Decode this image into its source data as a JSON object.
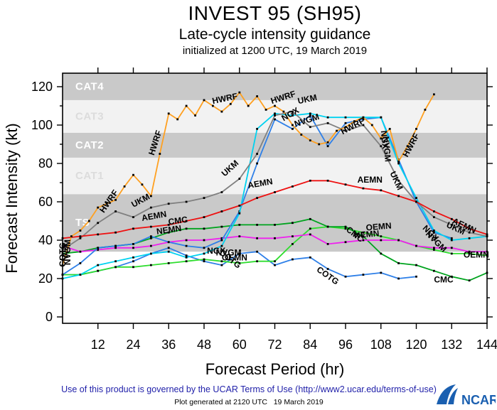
{
  "header": {
    "title": "INVEST 95 (SH95)",
    "subtitle": "Late-cycle intensity guidance",
    "initialized": "initialized at 1200 UTC, 19 March 2019"
  },
  "footer": {
    "terms": "Use of this product is governed by the UCAR Terms of Use (http://www2.ucar.edu/terms-of-use)",
    "generated": "Plot generated at 2120 UTC   19 March 2019",
    "logo_text": "NCAR"
  },
  "chart_data": {
    "type": "line",
    "title": "INVEST 95 (SH95)",
    "xlabel": "Forecast Period (hr)",
    "ylabel": "Forecast Intensity (kt)",
    "xlim": [
      0,
      144
    ],
    "ylim": [
      -3,
      127
    ],
    "x_ticks": [
      12,
      24,
      36,
      48,
      60,
      72,
      84,
      96,
      108,
      120,
      132,
      144
    ],
    "y_ticks": [
      0,
      20,
      40,
      60,
      80,
      100,
      120
    ],
    "y_minor_ticks": [
      10,
      30,
      50,
      70,
      90,
      110
    ],
    "grid": false,
    "bands": [
      {
        "label": "TS",
        "from": 34,
        "to": 64,
        "fill": "#c9c9c9",
        "label_color": "#ffffff"
      },
      {
        "label": "CAT1",
        "from": 64,
        "to": 83,
        "fill": "#f2f2f2",
        "label_color": "#dcdcdc"
      },
      {
        "label": "CAT2",
        "from": 83,
        "to": 96,
        "fill": "#c9c9c9",
        "label_color": "#ffffff"
      },
      {
        "label": "CAT3",
        "from": 96,
        "to": 113,
        "fill": "#f2f2f2",
        "label_color": "#dcdcdc"
      },
      {
        "label": "CAT4",
        "from": 113,
        "to": 127,
        "fill": "#c9c9c9",
        "label_color": "#ffffff"
      }
    ],
    "series": [
      {
        "name": "COTG",
        "color": "#2f80e8",
        "start": 0,
        "step": 6,
        "values": [
          22,
          22,
          24,
          26,
          29,
          33,
          36,
          32,
          29,
          27,
          33,
          34,
          27,
          30,
          31,
          25,
          21,
          22,
          23,
          20,
          21
        ]
      },
      {
        "name": "OEMN",
        "color": "#2fdd2f",
        "start": 0,
        "step": 6,
        "values": [
          22,
          22,
          24,
          26,
          26,
          27,
          28,
          29,
          30,
          29,
          28,
          29,
          29,
          38,
          46,
          47,
          46,
          44,
          42,
          40,
          37,
          35,
          33,
          33,
          32
        ]
      },
      {
        "name": "CMC",
        "color": "#00a31e",
        "start": 0,
        "step": 6,
        "values": [
          33,
          34,
          36,
          37,
          38,
          41,
          44,
          46,
          46,
          47,
          48,
          48,
          48,
          49,
          51,
          47,
          47,
          42,
          33,
          28,
          27,
          24,
          21,
          19,
          23
        ]
      },
      {
        "name": "NEMN",
        "color": "#ee22ee",
        "start": 0,
        "step": 6,
        "values": [
          37,
          34,
          35,
          36,
          36,
          37,
          39,
          40,
          40,
          41,
          42,
          41,
          41,
          42,
          43,
          38,
          39,
          40,
          40,
          40,
          37,
          36,
          36,
          34,
          34
        ]
      },
      {
        "name": "NGX",
        "color": "#2f80e8",
        "start": 0,
        "step": 6,
        "values": [
          22,
          28,
          36,
          37,
          38,
          42,
          39,
          37,
          36,
          40,
          55,
          80,
          103,
          98,
          105,
          89,
          101,
          103,
          104,
          82,
          60,
          44,
          41
        ]
      },
      {
        "name": "NVGM",
        "color": "#00d2f0",
        "start": 0,
        "step": 6,
        "values": [
          20,
          22,
          27,
          29,
          31,
          33,
          34,
          31,
          33,
          37,
          54,
          98,
          106,
          105,
          106,
          104,
          104,
          104,
          104,
          80,
          62,
          45,
          40,
          41,
          42
        ]
      },
      {
        "name": "UKM",
        "color": "#808080",
        "start": 0,
        "step": 6,
        "values": [
          35,
          41,
          49,
          55,
          52,
          57,
          59,
          60,
          62,
          65,
          72,
          85,
          105,
          107,
          99,
          101,
          97,
          100,
          89,
          71,
          60,
          52,
          48,
          44,
          42
        ]
      },
      {
        "name": "AEMN",
        "color": "#ee1111",
        "start": 0,
        "step": 6,
        "values": [
          41,
          42,
          43,
          44,
          46,
          47,
          48,
          50,
          52,
          55,
          58,
          62,
          65,
          68,
          71,
          71,
          69,
          67,
          66,
          63,
          60,
          55,
          51,
          46,
          43
        ]
      },
      {
        "name": "HWRF",
        "color": "#ffa020",
        "start": 0,
        "step": 3,
        "values": [
          27,
          42,
          45,
          50,
          57,
          59,
          61,
          68,
          74,
          69,
          63,
          85,
          106,
          103,
          110,
          105,
          113,
          110,
          107,
          111,
          117,
          110,
          115,
          108,
          110,
          107,
          100,
          95,
          92,
          90,
          91,
          97,
          99,
          102,
          104,
          100,
          93,
          98,
          81,
          89,
          98,
          108,
          116
        ]
      }
    ],
    "line_labels": [
      {
        "text": "HWRF",
        "hr": 14,
        "kt": 54,
        "rot": -55
      },
      {
        "text": "HWRF",
        "hr": 31,
        "kt": 84,
        "rot": -72
      },
      {
        "text": "HWRF",
        "hr": 51,
        "kt": 111,
        "rot": -12
      },
      {
        "text": "HWRF",
        "hr": 71,
        "kt": 111,
        "rot": -18
      },
      {
        "text": "HWRF",
        "hr": 95,
        "kt": 95,
        "rot": -28
      },
      {
        "text": "HWRF",
        "hr": 117,
        "kt": 83,
        "rot": -62
      },
      {
        "text": "UKM",
        "hr": 24,
        "kt": 57,
        "rot": -28
      },
      {
        "text": "UKM",
        "hr": 55,
        "kt": 73,
        "rot": -42
      },
      {
        "text": "UKM",
        "hr": 80,
        "kt": 111,
        "rot": -12
      },
      {
        "text": "UKM",
        "hr": 111,
        "kt": 75,
        "rot": 65
      },
      {
        "text": "UKM",
        "hr": 130,
        "kt": 47,
        "rot": 25
      },
      {
        "text": "AEMN",
        "hr": 27,
        "kt": 50,
        "rot": -10
      },
      {
        "text": "AEMN",
        "hr": 63,
        "kt": 67,
        "rot": -10
      },
      {
        "text": "AEMN",
        "hr": 100,
        "kt": 70,
        "rot": 0
      },
      {
        "text": "AEMN",
        "hr": 132,
        "kt": 49,
        "rot": 25
      },
      {
        "text": "NEMN",
        "hr": 32,
        "kt": 43,
        "rot": -8
      },
      {
        "text": "NEMN",
        "hr": 99,
        "kt": 41,
        "rot": -5
      },
      {
        "text": "CMC",
        "hr": 36,
        "kt": 48,
        "rot": -8
      },
      {
        "text": "CMC",
        "hr": 96,
        "kt": 45,
        "rot": 38
      },
      {
        "text": "CMC",
        "hr": 126,
        "kt": 18,
        "rot": 0
      },
      {
        "text": "OEMN",
        "hr": 54,
        "kt": 29.5,
        "rot": 0
      },
      {
        "text": "OEMN",
        "hr": 103,
        "kt": 45,
        "rot": -5
      },
      {
        "text": "OEMN",
        "hr": 136,
        "kt": 31,
        "rot": 0
      },
      {
        "text": "COTG",
        "hr": 53,
        "kt": 33,
        "rot": 38
      },
      {
        "text": "COTG",
        "hr": 86,
        "kt": 24,
        "rot": 35
      },
      {
        "text": "NGX",
        "hr": 49,
        "kt": 33,
        "rot": 0
      },
      {
        "text": "NVGM",
        "hr": 52,
        "kt": 32,
        "rot": 0
      },
      {
        "text": "NGX",
        "hr": 75,
        "kt": 102,
        "rot": -30
      },
      {
        "text": "NVGM",
        "hr": 79,
        "kt": 99,
        "rot": -18
      },
      {
        "text": "NGX",
        "hr": 108,
        "kt": 97,
        "rot": 85
      },
      {
        "text": "NVGM",
        "hr": 108.7,
        "kt": 94,
        "rot": 85
      },
      {
        "text": "NGX",
        "hr": 122,
        "kt": 46,
        "rot": 45
      },
      {
        "text": "NVGM",
        "hr": 123,
        "kt": 43,
        "rot": 45
      },
      {
        "text": "COTG",
        "hr": 1,
        "kt": 26,
        "rot": -90
      },
      {
        "text": "NGX",
        "hr": 1.8,
        "kt": 29,
        "rot": -90
      },
      {
        "text": "NVGM",
        "hr": 2.6,
        "kt": 27,
        "rot": -90
      }
    ]
  }
}
